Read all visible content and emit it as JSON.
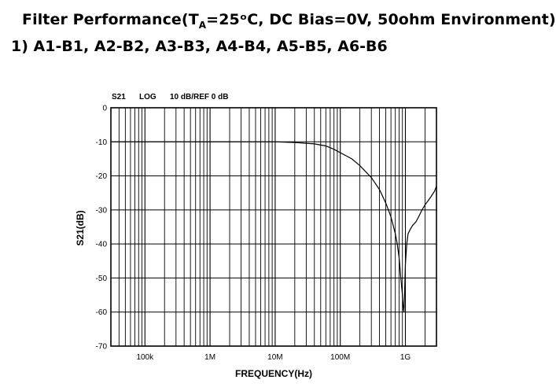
{
  "heading": {
    "prefix": "Filter Performance(T",
    "subscript": "A",
    "suffix": "=25ᵒC, DC Bias=0V, 50ohm Environment)"
  },
  "subheading": "1) A1-B1, A2-B2, A3-B3, A4-B4, A5-B5, A6-B6",
  "chart_data": {
    "type": "line",
    "header": {
      "param": "S21",
      "scale": "LOG",
      "ref": "10 dB/REF 0 dB"
    },
    "xlabel": "FREQUENCY(Hz)",
    "ylabel": "S21(dB)",
    "xscale": "log",
    "xlim": [
      30000,
      3000000000
    ],
    "ylim": [
      -70,
      0
    ],
    "yticks": [
      0,
      -10,
      -20,
      -30,
      -40,
      -50,
      -60,
      -70
    ],
    "ytick_labels": [
      "0",
      "-10",
      "-20",
      "-30",
      "-40",
      "-50",
      "-60",
      "-70"
    ],
    "xticks": [
      100000,
      1000000,
      10000000,
      100000000,
      1000000000
    ],
    "xtick_labels": [
      "100k",
      "1M",
      "10M",
      "100M",
      "1G"
    ],
    "grid": true,
    "series": [
      {
        "x": [
          30000,
          100000,
          1000000,
          5000000,
          10000000,
          20000000,
          40000000,
          60000000,
          80000000,
          100000000,
          150000000,
          200000000,
          300000000,
          400000000,
          500000000,
          600000000,
          700000000,
          750000000,
          800000000,
          850000000,
          900000000,
          930000000,
          950000000,
          970000000,
          1000000000,
          1050000000,
          1100000000,
          1200000000,
          1300000000,
          1450000000,
          1600000000,
          1800000000,
          2000000000,
          2200000000,
          2500000000,
          2800000000,
          3000000000
        ],
        "y": [
          -10,
          -10,
          -10,
          -10,
          -10,
          -10.2,
          -10.6,
          -11.2,
          -12.2,
          -13.2,
          -15,
          -17,
          -20.5,
          -24,
          -28,
          -32,
          -37,
          -40,
          -44,
          -50,
          -55,
          -59,
          -60,
          -55,
          -46,
          -40,
          -37,
          -35.5,
          -34.5,
          -33.5,
          -32,
          -30,
          -28.5,
          -27.5,
          -26,
          -24.5,
          -23
        ]
      }
    ]
  }
}
